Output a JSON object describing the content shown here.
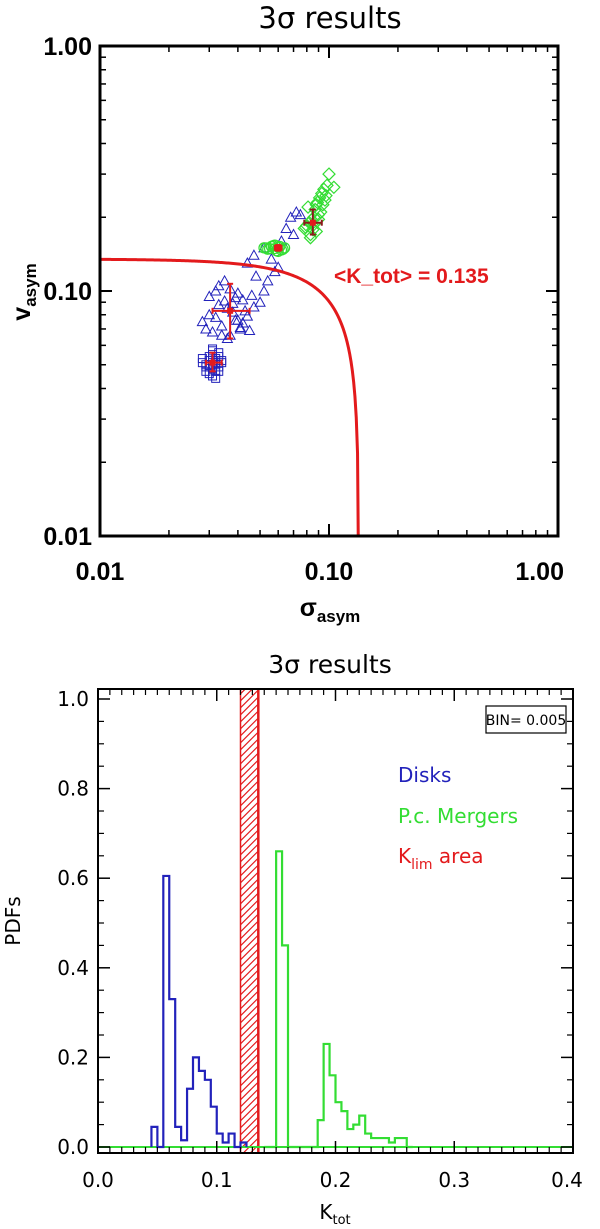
{
  "chart_data": [
    {
      "type": "scatter",
      "title": "3σ results",
      "xlabel": "σ",
      "xlabel_sub": "asym",
      "ylabel": "v",
      "ylabel_sub": "asym",
      "xscale": "log",
      "yscale": "log",
      "xlim": [
        0.01,
        1.0
      ],
      "ylim": [
        0.01,
        1.0
      ],
      "xticks": [
        "0.01",
        "0.10",
        "1.00"
      ],
      "yticks": [
        "0.01",
        "0.10",
        "1.00"
      ],
      "curve": {
        "label": "<K_tot> = 0.135",
        "k": 0.135,
        "color": "#e31a1c"
      },
      "series": [
        {
          "name": "Disks (squares)",
          "marker": "square",
          "color": "#2222bb",
          "center": [
            0.031,
            0.051
          ],
          "err_x": [
            0.029,
            0.034
          ],
          "err_y": [
            0.047,
            0.056
          ],
          "x": [
            0.029,
            0.03,
            0.031,
            0.032,
            0.033,
            0.03,
            0.031,
            0.032,
            0.028,
            0.034,
            0.031,
            0.03,
            0.032,
            0.033,
            0.029,
            0.031,
            0.032,
            0.03,
            0.031,
            0.033,
            0.028,
            0.03,
            0.032,
            0.034,
            0.031,
            0.029,
            0.031,
            0.033
          ],
          "y": [
            0.05,
            0.052,
            0.048,
            0.051,
            0.049,
            0.054,
            0.055,
            0.047,
            0.051,
            0.052,
            0.045,
            0.046,
            0.053,
            0.056,
            0.049,
            0.058,
            0.044,
            0.05,
            0.052,
            0.047,
            0.053,
            0.049,
            0.05,
            0.051,
            0.057,
            0.047,
            0.05,
            0.054
          ]
        },
        {
          "name": "Disks (triangles)",
          "marker": "triangle",
          "color": "#2222bb",
          "center": [
            0.037,
            0.083
          ],
          "err_x": [
            0.031,
            0.045
          ],
          "err_y": [
            0.064,
            0.107
          ],
          "x": [
            0.028,
            0.03,
            0.032,
            0.034,
            0.036,
            0.038,
            0.04,
            0.042,
            0.044,
            0.029,
            0.031,
            0.033,
            0.035,
            0.037,
            0.039,
            0.041,
            0.043,
            0.045,
            0.047,
            0.03,
            0.032,
            0.034,
            0.036,
            0.038,
            0.04,
            0.042,
            0.033,
            0.035,
            0.037,
            0.039,
            0.041,
            0.046,
            0.05,
            0.054,
            0.052,
            0.048,
            0.058,
            0.044,
            0.047,
            0.062,
            0.065,
            0.068,
            0.072,
            0.075,
            0.07,
            0.06,
            0.052,
            0.056
          ],
          "y": [
            0.075,
            0.08,
            0.078,
            0.072,
            0.085,
            0.082,
            0.076,
            0.074,
            0.079,
            0.07,
            0.068,
            0.088,
            0.091,
            0.066,
            0.094,
            0.071,
            0.083,
            0.069,
            0.086,
            0.095,
            0.1,
            0.066,
            0.064,
            0.089,
            0.098,
            0.092,
            0.105,
            0.11,
            0.102,
            0.076,
            0.07,
            0.096,
            0.09,
            0.11,
            0.1,
            0.115,
            0.12,
            0.13,
            0.14,
            0.16,
            0.18,
            0.2,
            0.21,
            0.205,
            0.17,
            0.125,
            0.15,
            0.135
          ]
        },
        {
          "name": "Mergers (circles)",
          "marker": "circle",
          "color": "#33dd33",
          "center": [
            0.06,
            0.15
          ],
          "err_x": [
            0.058,
            0.062
          ],
          "err_y": [
            0.146,
            0.154
          ],
          "x": [
            0.052,
            0.054,
            0.056,
            0.058,
            0.06,
            0.062,
            0.064,
            0.057,
            0.059,
            0.061,
            0.055,
            0.063,
            0.053,
            0.06,
            0.058
          ],
          "y": [
            0.15,
            0.148,
            0.152,
            0.149,
            0.151,
            0.147,
            0.15,
            0.153,
            0.146,
            0.152,
            0.149,
            0.148,
            0.15,
            0.145,
            0.154
          ]
        },
        {
          "name": "Mergers (diamonds)",
          "marker": "diamond",
          "color": "#33dd33",
          "center": [
            0.085,
            0.19
          ],
          "err_x": [
            0.078,
            0.093
          ],
          "err_y": [
            0.17,
            0.215
          ],
          "x": [
            0.078,
            0.08,
            0.082,
            0.084,
            0.086,
            0.088,
            0.09,
            0.092,
            0.081,
            0.083,
            0.085,
            0.087,
            0.089,
            0.079,
            0.091,
            0.093,
            0.095,
            0.097,
            0.094,
            0.096,
            0.098,
            0.1,
            0.105,
            0.09,
            0.086,
            0.083,
            0.088
          ],
          "y": [
            0.18,
            0.185,
            0.19,
            0.195,
            0.2,
            0.175,
            0.205,
            0.21,
            0.22,
            0.17,
            0.178,
            0.215,
            0.23,
            0.182,
            0.24,
            0.25,
            0.26,
            0.245,
            0.225,
            0.235,
            0.27,
            0.3,
            0.265,
            0.196,
            0.187,
            0.165,
            0.225
          ]
        }
      ]
    },
    {
      "type": "histogram",
      "title": "3σ results",
      "xlabel": "K",
      "xlabel_sub": "tot",
      "ylabel": "PDFs",
      "xlim": [
        0.0,
        0.4
      ],
      "ylim": [
        0.0,
        1.0
      ],
      "xticks": [
        "0.0",
        "0.1",
        "0.2",
        "0.3",
        "0.4"
      ],
      "yticks": [
        "0.0",
        "0.2",
        "0.4",
        "0.6",
        "0.8",
        "1.0"
      ],
      "bin_label": "BIN= 0.005",
      "bin_width": 0.005,
      "legend": [
        {
          "label": "Disks",
          "color": "#2222bb"
        },
        {
          "label": "P.c. Mergers",
          "color": "#33dd33"
        },
        {
          "label": "K",
          "label_sub": "lim",
          "label_suffix": " area",
          "color": "#e31a1c"
        }
      ],
      "klim_area": {
        "x0": 0.12,
        "x1": 0.135,
        "line": 0.135,
        "color": "#e31a1c"
      },
      "series": [
        {
          "name": "Disks",
          "color": "#2222bb",
          "bin_starts": [
            0.045,
            0.05,
            0.055,
            0.06,
            0.065,
            0.07,
            0.075,
            0.08,
            0.085,
            0.09,
            0.095,
            0.1,
            0.105,
            0.11,
            0.115,
            0.12
          ],
          "values": [
            0.045,
            0.0,
            0.605,
            0.33,
            0.045,
            0.015,
            0.13,
            0.2,
            0.17,
            0.15,
            0.09,
            0.03,
            0.01,
            0.03,
            0.0,
            0.01
          ]
        },
        {
          "name": "P.c. Mergers",
          "color": "#33dd33",
          "bin_starts": [
            0.14,
            0.145,
            0.15,
            0.155,
            0.16,
            0.165,
            0.17,
            0.175,
            0.18,
            0.185,
            0.19,
            0.195,
            0.2,
            0.205,
            0.21,
            0.215,
            0.22,
            0.225,
            0.23,
            0.235,
            0.24,
            0.245,
            0.25,
            0.255,
            0.26
          ],
          "values": [
            0.0,
            0.0,
            0.66,
            0.45,
            0.0,
            0.0,
            0.0,
            0.0,
            0.0,
            0.06,
            0.23,
            0.16,
            0.1,
            0.08,
            0.04,
            0.05,
            0.07,
            0.03,
            0.02,
            0.02,
            0.02,
            0.01,
            0.02,
            0.02,
            0.0
          ]
        }
      ]
    }
  ]
}
